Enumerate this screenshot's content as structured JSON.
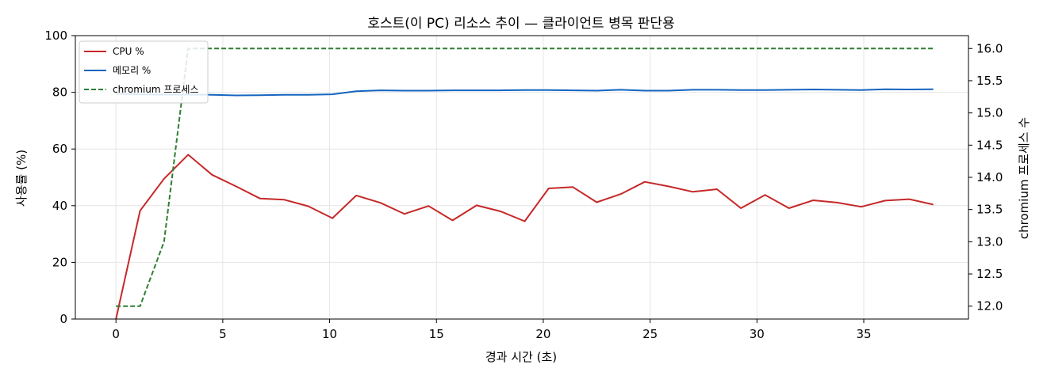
{
  "chart_data": {
    "type": "line",
    "title": "호스트(이 PC) 리소스 추이 — 클라이언트 병목 판단용",
    "xlabel": "경과 시간 (초)",
    "ylabel": "사용률 (%)",
    "y2label": "chromium 프로세스 수",
    "xlim": [
      -1.9,
      39.9
    ],
    "ylim": [
      0,
      100
    ],
    "y2lim": [
      11.8,
      16.2
    ],
    "x_ticks": [
      0,
      5,
      10,
      15,
      20,
      25,
      30,
      35
    ],
    "y_ticks": [
      0,
      20,
      40,
      60,
      80,
      100
    ],
    "y2_ticks": [
      12.0,
      12.5,
      13.0,
      13.5,
      14.0,
      14.5,
      15.0,
      15.5,
      16.0
    ],
    "y2_tick_labels": [
      "12.0",
      "12.5",
      "13.0",
      "13.5",
      "14.0",
      "14.5",
      "15.0",
      "15.5",
      "16.0"
    ],
    "grid": true,
    "legend_position": "top-left",
    "x": [
      0,
      1.13,
      2.25,
      3.38,
      4.5,
      5.63,
      6.75,
      7.88,
      9.0,
      10.13,
      11.25,
      12.38,
      13.5,
      14.63,
      15.75,
      16.88,
      18.0,
      19.13,
      20.25,
      21.38,
      22.5,
      23.63,
      24.75,
      25.88,
      27.0,
      28.13,
      29.25,
      30.38,
      31.5,
      32.63,
      33.75,
      34.88,
      36.0,
      37.13,
      38.25
    ],
    "series": [
      {
        "name": "CPU %",
        "axis": "left",
        "color": "#c62828",
        "style": "solid",
        "values": [
          0,
          38.2,
          49.5,
          58.0,
          50.9,
          46.8,
          42.5,
          42.1,
          39.8,
          35.6,
          43.6,
          41.0,
          37.1,
          39.9,
          34.8,
          40.1,
          38.0,
          34.5,
          46.1,
          46.6,
          41.2,
          44.1,
          48.4,
          46.8,
          44.9,
          45.8,
          39.1,
          43.8,
          39.1,
          41.9,
          41.1,
          39.6,
          41.8,
          42.3,
          40.4
        ]
      },
      {
        "name": "메모리 %",
        "axis": "left",
        "color": "#1565c0",
        "style": "solid",
        "values": [
          79.5,
          79.3,
          79.2,
          79.2,
          79.1,
          78.9,
          79.0,
          79.1,
          79.1,
          79.3,
          80.4,
          80.7,
          80.6,
          80.6,
          80.7,
          80.7,
          80.7,
          80.8,
          80.8,
          80.7,
          80.6,
          80.9,
          80.6,
          80.6,
          80.9,
          80.9,
          80.8,
          80.8,
          80.9,
          81.0,
          80.9,
          80.8,
          81.1,
          81.0,
          81.1
        ]
      },
      {
        "name": "chromium 프로세스",
        "axis": "right",
        "color": "#2e7d32",
        "style": "dashed",
        "values": [
          12,
          12,
          13,
          16,
          16,
          16,
          16,
          16,
          16,
          16,
          16,
          16,
          16,
          16,
          16,
          16,
          16,
          16,
          16,
          16,
          16,
          16,
          16,
          16,
          16,
          16,
          16,
          16,
          16,
          16,
          16,
          16,
          16,
          16,
          16
        ]
      }
    ]
  }
}
